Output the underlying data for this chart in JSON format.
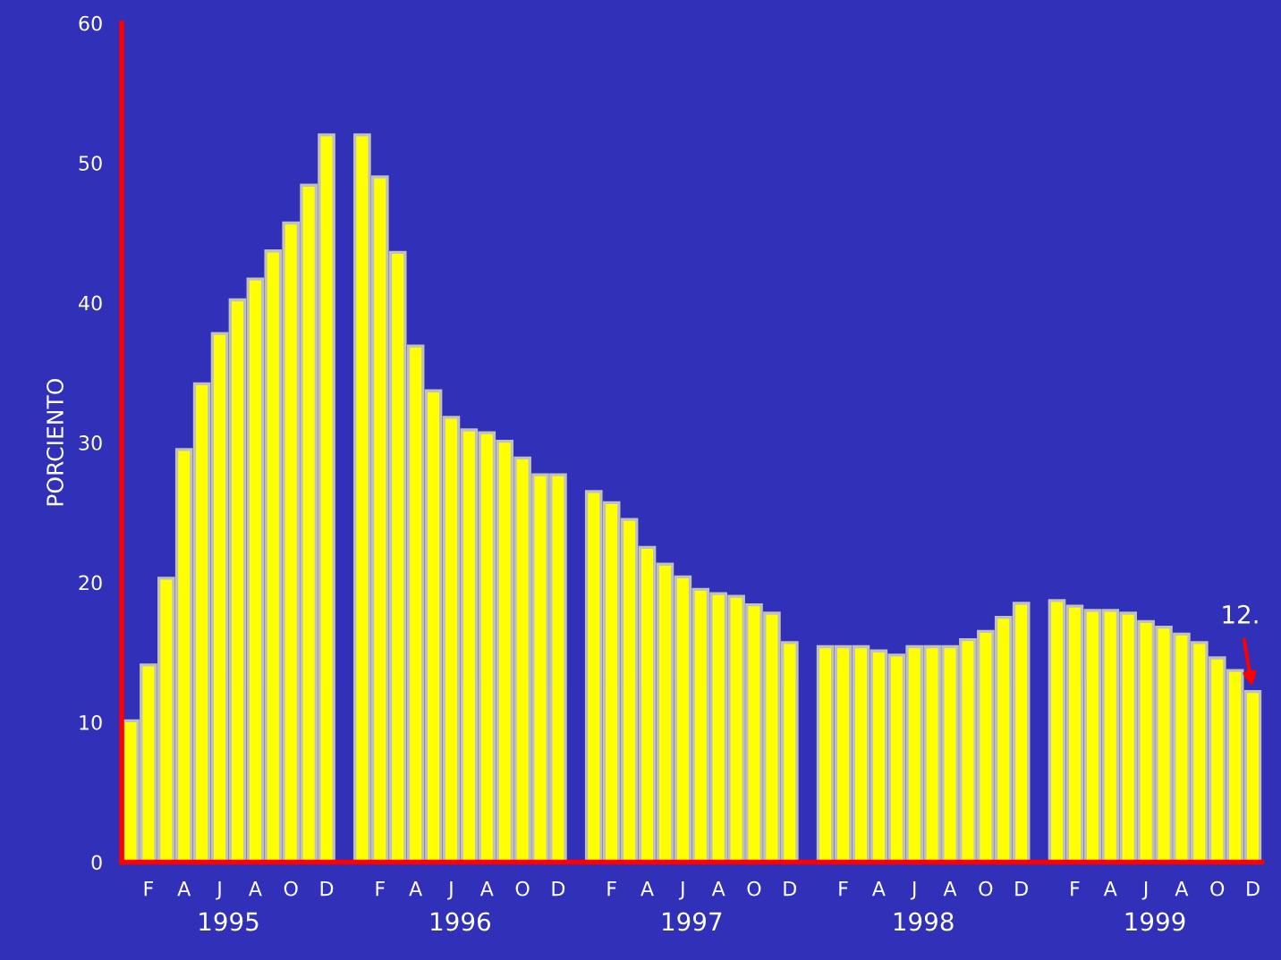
{
  "chart_data": {
    "type": "bar",
    "ylabel": "PORCIENTO",
    "categories": [
      null,
      "F",
      null,
      "A",
      null,
      "J",
      null,
      "A",
      null,
      "O",
      null,
      "D",
      null,
      null,
      "F",
      null,
      "A",
      null,
      "J",
      null,
      "A",
      null,
      "O",
      null,
      "D",
      null,
      null,
      "F",
      null,
      "A",
      null,
      "J",
      null,
      "A",
      null,
      "O",
      null,
      "D",
      null,
      null,
      "F",
      null,
      "A",
      null,
      "J",
      null,
      "A",
      null,
      "O",
      null,
      "D",
      null,
      null,
      "F",
      null,
      "A",
      null,
      "J",
      null,
      "A",
      null,
      "O",
      null,
      "D"
    ],
    "series": [
      {
        "color": "#ffff00",
        "values": [
          10.1,
          14.1,
          20.3,
          29.5,
          34.2,
          37.8,
          40.2,
          41.7,
          43.7,
          45.7,
          48.4,
          52.0,
          null,
          52.0,
          49.0,
          43.6,
          36.9,
          33.7,
          31.8,
          30.9,
          30.7,
          30.1,
          28.9,
          27.7,
          27.7,
          null,
          26.5,
          25.7,
          24.5,
          22.5,
          21.3,
          20.4,
          19.5,
          19.2,
          19.0,
          18.4,
          17.8,
          15.7,
          null,
          15.4,
          15.4,
          15.4,
          15.1,
          14.8,
          15.4,
          15.4,
          15.4,
          15.9,
          16.5,
          17.5,
          18.5,
          null,
          18.7,
          18.3,
          18.0,
          18.0,
          17.8,
          17.2,
          16.8,
          16.3,
          15.7,
          14.6,
          13.7,
          12.2
        ]
      }
    ],
    "ylim": [
      0,
      60
    ],
    "yticks": [
      0,
      10,
      20,
      30,
      40,
      50,
      60
    ],
    "grid": false,
    "legend": false,
    "annotations": [
      "1995",
      "1996",
      "1997",
      "1998",
      "1999",
      {
        "text": "12.",
        "y": 12.2
      }
    ]
  }
}
